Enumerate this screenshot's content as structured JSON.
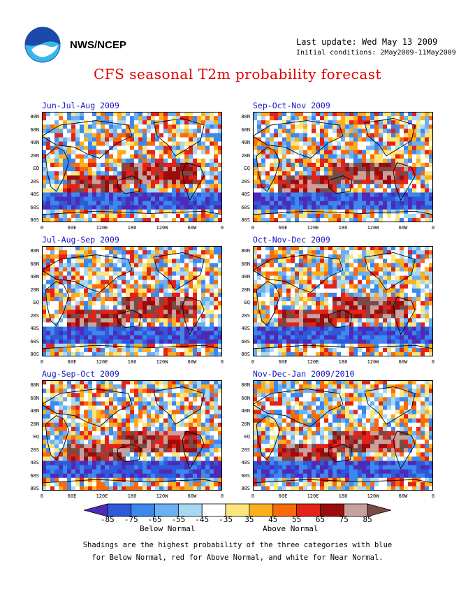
{
  "header": {
    "org": "NWS/NCEP",
    "last_update": "Last update: Wed May 13 2009",
    "initial_conditions": "Initial conditions: 2May2009-11May2009",
    "title": "CFS seasonal T2m probability forecast"
  },
  "panels": [
    {
      "title": "Jun-Jul-Aug 2009"
    },
    {
      "title": "Sep-Oct-Nov 2009"
    },
    {
      "title": "Jul-Aug-Sep 2009"
    },
    {
      "title": "Oct-Nov-Dec 2009"
    },
    {
      "title": "Aug-Sep-Oct 2009"
    },
    {
      "title": "Nov-Dec-Jan 2009/2010"
    }
  ],
  "axes": {
    "lat_labels": [
      "80N",
      "60N",
      "40N",
      "20N",
      "EQ",
      "20S",
      "40S",
      "60S",
      "80S"
    ],
    "lon_labels": [
      "0",
      "60E",
      "120E",
      "180",
      "120W",
      "60W",
      "0"
    ]
  },
  "colorbar": {
    "labels": [
      "-85",
      "-75",
      "-65",
      "-55",
      "-45",
      "-35",
      "35",
      "45",
      "55",
      "65",
      "75",
      "85"
    ],
    "colors": [
      "#4f2ab8",
      "#2e59d9",
      "#3d87ee",
      "#6bb0f2",
      "#a9d8f5",
      "#ffffff",
      "#fde67a",
      "#fcae1e",
      "#f86a0a",
      "#e1231a",
      "#9c0c0c",
      "#c9a19c",
      "#7a4a47"
    ],
    "below_label": "Below Normal",
    "above_label": "Above Normal"
  },
  "legend_note": {
    "line1": "Shadings are the highest probability of the three categories with blue",
    "line2": "for Below Normal, red for Above Normal, and white for Near Normal."
  },
  "colors": {
    "title_red": "#e00000",
    "panel_title_blue": "#1515c8",
    "logo_blue": "#1b4aa8",
    "logo_cyan": "#38b8ea"
  }
}
